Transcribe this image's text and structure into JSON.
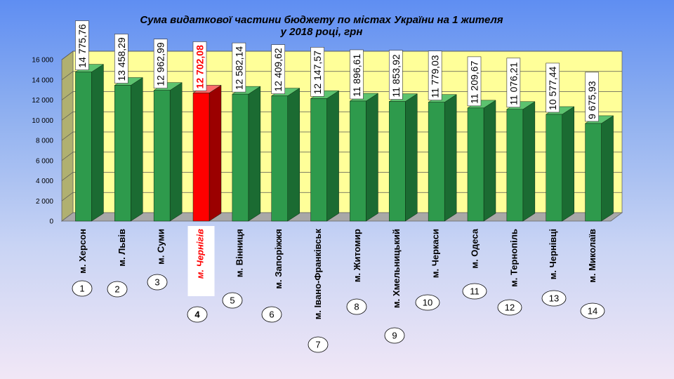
{
  "chart_data": {
    "type": "bar",
    "title_line1": "Сума видаткової частини бюджету по містах України на 1 жителя",
    "title_line2": "у 2018 році, грн",
    "categories": [
      "м. Херсон",
      "м. Львів",
      "м. Суми",
      "м. Чернігів",
      "м. Вінниця",
      "м. Запоріжжя",
      "м. Івано-Франківськ",
      "м. Житомир",
      "м. Хмельницький",
      "м. Черкаси",
      "м. Одеса",
      "м. Тернопіль",
      "м. Чернівці",
      "м. Миколаїв"
    ],
    "values": [
      14775.76,
      13458.29,
      12962.99,
      12702.08,
      12582.14,
      12409.62,
      12147.57,
      11896.61,
      11853.92,
      11779.03,
      11209.67,
      11076.21,
      10577.44,
      9675.93
    ],
    "value_labels": [
      "14 775,76",
      "13 458,29",
      "12 962,99",
      "12 702,08",
      "12 582,14",
      "12 409,62",
      "12 147,57",
      "11 896,61",
      "11 853,92",
      "11 779,03",
      "11 209,67",
      "11 076,21",
      "10 577,44",
      "9 675,93"
    ],
    "ranks": [
      "1",
      "2",
      "3",
      "4",
      "5",
      "6",
      "7",
      "8",
      "9",
      "10",
      "11",
      "12",
      "13",
      "14"
    ],
    "highlight_index": 3,
    "ylim": [
      0,
      16000
    ],
    "yticks": [
      "0",
      "2 000",
      "4 000",
      "6 000",
      "8 000",
      "10 000",
      "12 000",
      "14 000",
      "16 000"
    ],
    "ytick_values": [
      0,
      2000,
      4000,
      6000,
      8000,
      10000,
      12000,
      14000,
      16000
    ],
    "grid": true,
    "colors": {
      "bar": "#2e9a4c",
      "bar_highlight": "#ff0000",
      "plot_back": "#ffff99",
      "plot_side": "#b0b070",
      "plot_floor": "#a8a8a8",
      "label_box": "#ffffff"
    }
  }
}
